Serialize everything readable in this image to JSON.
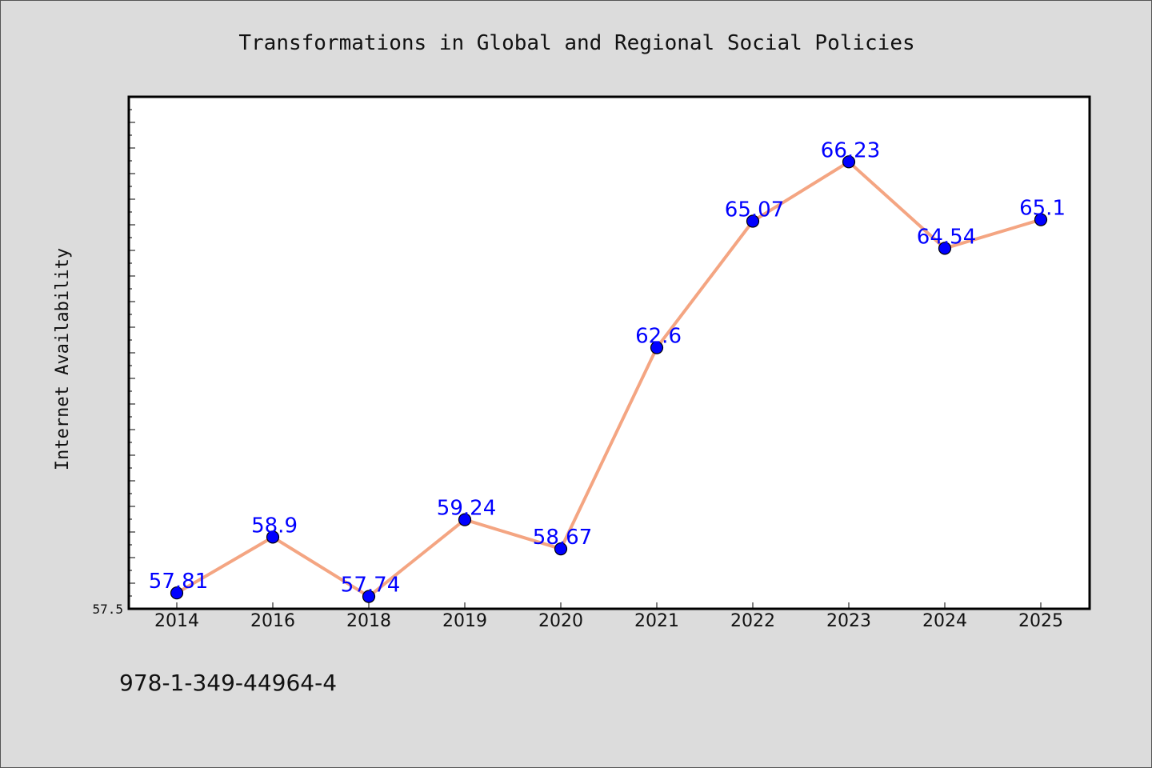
{
  "chart_data": {
    "type": "line",
    "title": "Transformations in Global and Regional Social Policies",
    "xlabel": "",
    "ylabel": "Internet Availability",
    "categories": [
      "2014",
      "2016",
      "2018",
      "2019",
      "2020",
      "2021",
      "2022",
      "2023",
      "2024",
      "2025"
    ],
    "series": [
      {
        "values": [
          57.81,
          58.9,
          57.74,
          59.24,
          58.67,
          62.6,
          65.07,
          66.23,
          64.54,
          65.1
        ],
        "labels": [
          "57.81",
          "58.9",
          "57.74",
          "59.24",
          "58.67",
          "62.6",
          "65.07",
          "66.23",
          "64.54",
          "65.1"
        ]
      }
    ],
    "ylim": [
      57.5,
      67.5
    ],
    "ytick_label": "57.5",
    "grid": false,
    "colors": {
      "line": "#f4a582",
      "marker": "#0000ff",
      "marker_edge": "#000000",
      "label": "#0000ff",
      "plot_background": "#ffffff",
      "figure_background": "#dcdcdc"
    }
  },
  "footer": {
    "isbn": "978-1-349-44964-4"
  }
}
